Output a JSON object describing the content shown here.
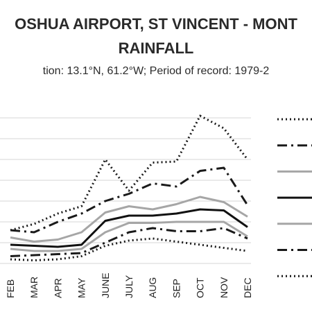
{
  "chart_data": {
    "type": "line",
    "title_line1": "OSHUA AIRPORT, ST VINCENT - MONT",
    "title_line2": "RAINFALL",
    "subtitle": "tion: 13.1°N, 61.2°W; Period of record: 1979-2",
    "categories": [
      "FEB",
      "MAR",
      "APR",
      "MAY",
      "JUNE",
      "JULY",
      "AUG",
      "SEP",
      "OCT",
      "NOV",
      "DEC"
    ],
    "ylim": [
      0,
      7
    ],
    "grid": true,
    "legend": "right",
    "series": [
      {
        "style": "dotted",
        "color": "#1a1a1a",
        "width": 3,
        "values": [
          1.6,
          1.9,
          2.4,
          2.75,
          5.0,
          3.5,
          4.85,
          4.9,
          7.1,
          6.5,
          5.0
        ]
      },
      {
        "style": "dashdot",
        "color": "#1a1a1a",
        "width": 3,
        "values": [
          1.6,
          1.5,
          2.0,
          2.4,
          3.0,
          3.35,
          3.85,
          3.7,
          4.45,
          4.6,
          2.8
        ]
      },
      {
        "style": "solid",
        "color": "#a6a6a6",
        "width": 3,
        "values": [
          1.25,
          1.05,
          1.15,
          1.5,
          2.45,
          2.75,
          2.6,
          2.85,
          3.2,
          2.95,
          2.25
        ]
      },
      {
        "style": "solid",
        "color": "#111111",
        "width": 3,
        "values": [
          0.9,
          0.85,
          0.8,
          0.9,
          2.05,
          2.3,
          2.3,
          2.4,
          2.6,
          2.55,
          1.75
        ]
      },
      {
        "style": "solid",
        "color": "#a6a6a6",
        "width": 3,
        "values": [
          0.7,
          0.6,
          0.6,
          0.7,
          1.5,
          1.95,
          1.95,
          2.0,
          2.0,
          2.0,
          1.3
        ]
      },
      {
        "style": "dashdot",
        "color": "#1a1a1a",
        "width": 3,
        "values": [
          0.35,
          0.4,
          0.45,
          0.5,
          1.0,
          1.5,
          1.7,
          1.55,
          1.55,
          1.7,
          1.2
        ]
      },
      {
        "style": "dotted",
        "color": "#1a1a1a",
        "width": 3,
        "values": [
          0.2,
          0.15,
          0.2,
          0.35,
          0.85,
          1.1,
          1.2,
          1.05,
          0.9,
          0.75,
          0.6
        ]
      }
    ]
  }
}
